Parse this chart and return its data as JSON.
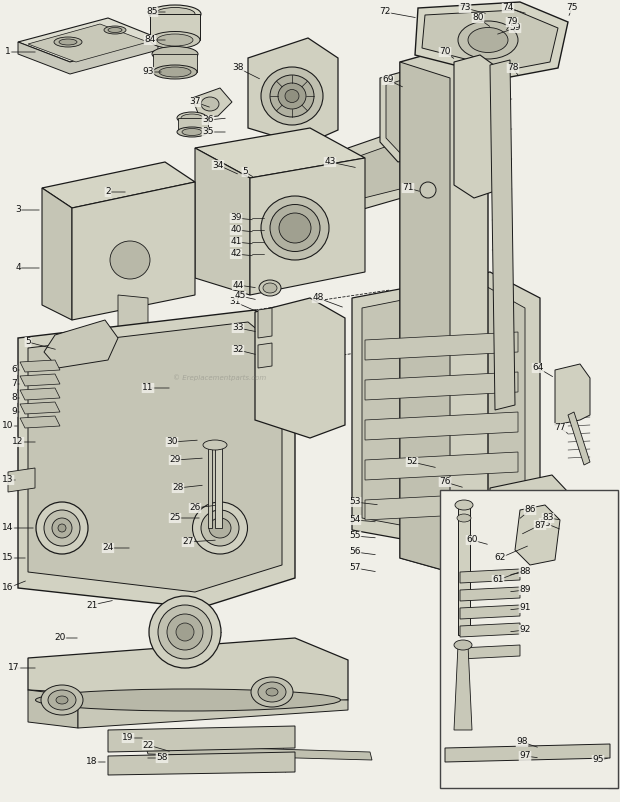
{
  "bg_color": "#f0efe8",
  "line_color": "#1a1a1a",
  "label_color": "#111111",
  "font_size": 6.5,
  "watermark": "© Ereplacementparts.com",
  "fig_w": 6.2,
  "fig_h": 8.02,
  "dpi": 100
}
